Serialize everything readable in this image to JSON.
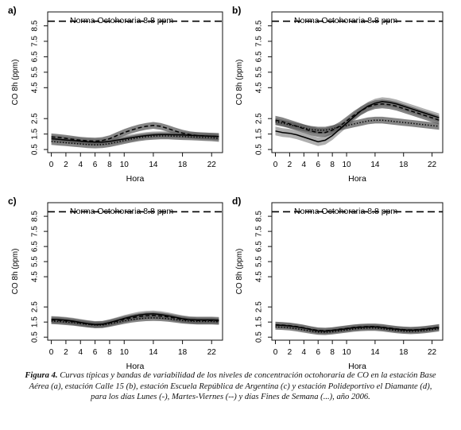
{
  "chart_data": [
    {
      "type": "line",
      "panel_label": "a)",
      "xlabel": "Hora",
      "ylabel": "CO 8h (ppm)",
      "reference_line": {
        "value": 8.8,
        "label": "Norma Octohoraria 8.8 ppm"
      },
      "xlim": [
        -0.5,
        23.5
      ],
      "ylim": [
        0.3,
        9.4
      ],
      "xticks": [
        0,
        2,
        4,
        6,
        8,
        10,
        14,
        18,
        22
      ],
      "yticks": [
        "0.5",
        "1.5",
        "2.5",
        "4.5",
        "5.5",
        "6.5",
        "7.5",
        "8.5"
      ],
      "x": [
        0,
        1,
        2,
        3,
        4,
        5,
        6,
        7,
        8,
        9,
        10,
        11,
        12,
        13,
        14,
        15,
        16,
        17,
        18,
        19,
        20,
        21,
        22,
        23
      ],
      "series": [
        {
          "style": "solid",
          "values": [
            1.2,
            1.16,
            1.12,
            1.08,
            1.04,
            1.0,
            0.98,
            0.98,
            1.02,
            1.1,
            1.18,
            1.26,
            1.34,
            1.4,
            1.44,
            1.46,
            1.46,
            1.45,
            1.44,
            1.42,
            1.4,
            1.38,
            1.36,
            1.34
          ],
          "band": 0.22
        },
        {
          "style": "dashed",
          "values": [
            1.32,
            1.28,
            1.22,
            1.16,
            1.1,
            1.06,
            1.04,
            1.08,
            1.2,
            1.4,
            1.6,
            1.76,
            1.9,
            2.0,
            2.06,
            2.0,
            1.86,
            1.7,
            1.56,
            1.46,
            1.4,
            1.38,
            1.36,
            1.34
          ],
          "band": 0.22
        },
        {
          "style": "dotted",
          "values": [
            1.02,
            0.98,
            0.94,
            0.9,
            0.86,
            0.82,
            0.8,
            0.82,
            0.88,
            0.98,
            1.08,
            1.18,
            1.26,
            1.32,
            1.36,
            1.38,
            1.38,
            1.36,
            1.34,
            1.32,
            1.3,
            1.28,
            1.26,
            1.22
          ],
          "band": 0.22
        }
      ]
    },
    {
      "type": "line",
      "panel_label": "b)",
      "xlabel": "Hora",
      "ylabel": "CO 8h (ppm)",
      "reference_line": {
        "value": 8.8,
        "label": "Norma Octohoraria 8.8 ppm"
      },
      "xlim": [
        -0.5,
        23.5
      ],
      "ylim": [
        0.3,
        9.4
      ],
      "xticks": [
        0,
        2,
        4,
        6,
        8,
        10,
        14,
        18,
        22
      ],
      "yticks": [
        "0.5",
        "1.5",
        "2.5",
        "4.5",
        "5.5",
        "6.5",
        "7.5",
        "8.5"
      ],
      "x": [
        0,
        1,
        2,
        3,
        4,
        5,
        6,
        7,
        8,
        9,
        10,
        11,
        12,
        13,
        14,
        15,
        16,
        17,
        18,
        19,
        20,
        21,
        22,
        23
      ],
      "series": [
        {
          "style": "solid",
          "values": [
            1.7,
            1.6,
            1.55,
            1.45,
            1.3,
            1.15,
            1.0,
            1.1,
            1.4,
            1.8,
            2.2,
            2.6,
            3.0,
            3.3,
            3.5,
            3.6,
            3.55,
            3.45,
            3.3,
            3.15,
            3.0,
            2.85,
            2.7,
            2.55
          ],
          "band": 0.28
        },
        {
          "style": "dashed",
          "values": [
            2.4,
            2.3,
            2.15,
            2.0,
            1.85,
            1.7,
            1.6,
            1.6,
            1.75,
            2.0,
            2.35,
            2.7,
            3.0,
            3.25,
            3.4,
            3.45,
            3.4,
            3.3,
            3.15,
            3.0,
            2.85,
            2.7,
            2.55,
            2.4
          ],
          "band": 0.28
        },
        {
          "style": "dotted",
          "values": [
            2.3,
            2.2,
            2.1,
            2.0,
            1.9,
            1.8,
            1.75,
            1.75,
            1.85,
            1.95,
            2.05,
            2.15,
            2.25,
            2.35,
            2.4,
            2.4,
            2.35,
            2.3,
            2.25,
            2.2,
            2.15,
            2.1,
            2.05,
            2.0
          ],
          "band": 0.22
        }
      ]
    },
    {
      "type": "line",
      "panel_label": "c)",
      "xlabel": "Hora",
      "ylabel": "CO 8h (ppm)",
      "reference_line": {
        "value": 8.8,
        "label": "Norma Octohoraria 8.8 ppm"
      },
      "xlim": [
        -0.5,
        23.5
      ],
      "ylim": [
        0.3,
        9.4
      ],
      "xticks": [
        0,
        2,
        4,
        6,
        8,
        10,
        14,
        18,
        22
      ],
      "yticks": [
        "0.5",
        "1.5",
        "2.5",
        "4.5",
        "5.5",
        "6.5",
        "7.5",
        "8.5"
      ],
      "x": [
        0,
        1,
        2,
        3,
        4,
        5,
        6,
        7,
        8,
        9,
        10,
        11,
        12,
        13,
        14,
        15,
        16,
        17,
        18,
        19,
        20,
        21,
        22,
        23
      ],
      "series": [
        {
          "style": "solid",
          "values": [
            1.68,
            1.66,
            1.62,
            1.56,
            1.48,
            1.4,
            1.34,
            1.36,
            1.46,
            1.6,
            1.74,
            1.86,
            1.96,
            2.02,
            2.04,
            2.0,
            1.92,
            1.82,
            1.72,
            1.66,
            1.64,
            1.64,
            1.64,
            1.62
          ],
          "band": 0.22
        },
        {
          "style": "dashed",
          "values": [
            1.64,
            1.62,
            1.58,
            1.52,
            1.44,
            1.38,
            1.32,
            1.34,
            1.44,
            1.56,
            1.68,
            1.78,
            1.86,
            1.92,
            1.94,
            1.9,
            1.84,
            1.76,
            1.68,
            1.62,
            1.6,
            1.6,
            1.6,
            1.58
          ],
          "band": 0.22
        },
        {
          "style": "dotted",
          "values": [
            1.56,
            1.54,
            1.5,
            1.46,
            1.4,
            1.34,
            1.3,
            1.3,
            1.38,
            1.48,
            1.58,
            1.66,
            1.72,
            1.76,
            1.78,
            1.76,
            1.72,
            1.66,
            1.6,
            1.56,
            1.54,
            1.54,
            1.54,
            1.52
          ],
          "band": 0.2
        }
      ]
    },
    {
      "type": "line",
      "panel_label": "d)",
      "xlabel": "Hora",
      "ylabel": "CO 8h (ppm)",
      "reference_line": {
        "value": 8.8,
        "label": "Norma Octohoraria 8.8 ppm"
      },
      "xlim": [
        -0.5,
        23.5
      ],
      "ylim": [
        0.3,
        9.4
      ],
      "xticks": [
        0,
        2,
        4,
        6,
        8,
        10,
        14,
        18,
        22
      ],
      "yticks": [
        "0.5",
        "1.5",
        "2.5",
        "4.5",
        "5.5",
        "6.5",
        "7.5",
        "8.5"
      ],
      "x": [
        0,
        1,
        2,
        3,
        4,
        5,
        6,
        7,
        8,
        9,
        10,
        11,
        12,
        13,
        14,
        15,
        16,
        17,
        18,
        19,
        20,
        21,
        22,
        23
      ],
      "series": [
        {
          "style": "solid",
          "values": [
            1.3,
            1.28,
            1.24,
            1.18,
            1.1,
            1.0,
            0.92,
            0.9,
            0.94,
            1.0,
            1.06,
            1.12,
            1.16,
            1.18,
            1.18,
            1.14,
            1.08,
            1.02,
            0.98,
            0.96,
            0.98,
            1.02,
            1.08,
            1.14
          ],
          "band": 0.2
        },
        {
          "style": "dashed",
          "values": [
            1.32,
            1.3,
            1.26,
            1.2,
            1.12,
            1.02,
            0.94,
            0.92,
            0.96,
            1.02,
            1.08,
            1.14,
            1.18,
            1.2,
            1.2,
            1.16,
            1.1,
            1.04,
            1.0,
            0.98,
            1.0,
            1.04,
            1.1,
            1.16
          ],
          "band": 0.2
        },
        {
          "style": "dotted",
          "values": [
            1.18,
            1.16,
            1.12,
            1.06,
            0.98,
            0.9,
            0.84,
            0.82,
            0.86,
            0.92,
            0.98,
            1.04,
            1.08,
            1.1,
            1.1,
            1.06,
            1.0,
            0.94,
            0.9,
            0.88,
            0.9,
            0.94,
            1.0,
            1.06
          ],
          "band": 0.18
        }
      ]
    }
  ],
  "caption": {
    "label": "Figura 4.",
    "text": "Curvas típicas y bandas de variabilidad de los niveles de concentración octohoraria de CO en la estación Base Aérea (a), estación Calle 15 (b), estación Escuela República de Argentina (c) y estación Polideportivo el Diamante (d), para los días Lunes (-), Martes-Viernes (--) y días Fines de Semana (...), año 2006."
  },
  "colors": {
    "band": "#5c5c5c",
    "band_light": "#a6a6a6",
    "line": "#000000",
    "frame": "#111111"
  }
}
